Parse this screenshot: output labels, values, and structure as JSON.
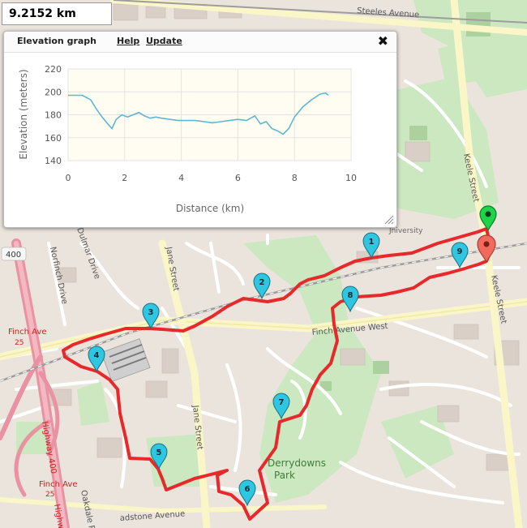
{
  "route": {
    "distance_text": "9.2152 km",
    "color": "#e8282b"
  },
  "elevation_panel": {
    "title": "Elevation graph",
    "help_label": "Help",
    "update_label": "Update",
    "close_icon": "close-icon"
  },
  "chart_data": {
    "type": "line",
    "title": "",
    "xlabel": "Distance (km)",
    "ylabel": "Elevation (meters)",
    "xlim": [
      0,
      10
    ],
    "ylim": [
      140,
      220
    ],
    "xticks": [
      "0",
      "2",
      "4",
      "6",
      "8",
      "10"
    ],
    "yticks": [
      "140",
      "160",
      "180",
      "200",
      "220"
    ],
    "grid": true,
    "line_color": "#5fb6cf",
    "x": [
      0,
      0.2,
      0.5,
      0.8,
      1.0,
      1.2,
      1.4,
      1.55,
      1.7,
      1.9,
      2.1,
      2.3,
      2.5,
      2.7,
      2.9,
      3.1,
      3.3,
      3.6,
      3.9,
      4.2,
      4.5,
      4.8,
      5.1,
      5.4,
      5.7,
      6.0,
      6.3,
      6.6,
      6.8,
      7.0,
      7.2,
      7.4,
      7.6,
      7.8,
      8.0,
      8.3,
      8.6,
      8.9,
      9.1,
      9.2
    ],
    "y": [
      197,
      197,
      197,
      193,
      185,
      178,
      172,
      168,
      176,
      180,
      178,
      180,
      182,
      179,
      177,
      178,
      177,
      176,
      175,
      175,
      175,
      174,
      173,
      174,
      175,
      176,
      175,
      179,
      172,
      174,
      168,
      166,
      163,
      168,
      178,
      187,
      193,
      198,
      199,
      197
    ]
  },
  "map_labels": {
    "steeles": "Steeles Avenue",
    "keele_1": "Keele Street",
    "keele_2": "Keele Street",
    "jane_1": "Jane Street",
    "jane_2": "Jane Street",
    "norfinch": "Norfinch Drive",
    "dulmar": "Dulmar Drive",
    "finch_west": "Finch Avenue West",
    "finch_ave": "Finch Ave",
    "route25_1": "25",
    "route25_2": "25",
    "highway400": "Highway 400",
    "shield400": "400",
    "finch_ave_2": "Finch Ave",
    "highway_2": "Highw",
    "derrydowns": "Derrydowns",
    "park": "Park",
    "oakdale": "Oakdale R",
    "gladstone": "adstone Avenue",
    "university": "Jniversity"
  },
  "markers": [
    {
      "label": "1",
      "color": "#2ec6e0"
    },
    {
      "label": "2",
      "color": "#2ec6e0"
    },
    {
      "label": "3",
      "color": "#2ec6e0"
    },
    {
      "label": "4",
      "color": "#2ec6e0"
    },
    {
      "label": "5",
      "color": "#2ec6e0"
    },
    {
      "label": "6",
      "color": "#2ec6e0"
    },
    {
      "label": "7",
      "color": "#2ec6e0"
    },
    {
      "label": "8",
      "color": "#2ec6e0"
    },
    {
      "label": "9",
      "color": "#2ec6e0"
    }
  ],
  "start_marker": {
    "icon": "start-pin-icon",
    "color": "#1ed24a"
  },
  "end_marker": {
    "icon": "end-pin-icon",
    "color": "#f06a5e"
  }
}
